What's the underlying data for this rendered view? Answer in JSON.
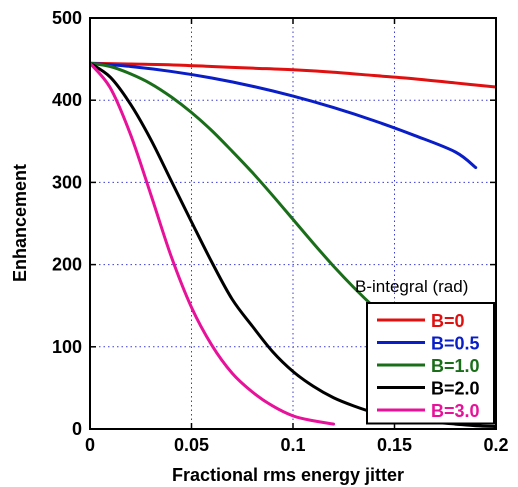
{
  "chart_data": {
    "type": "line",
    "xlabel": "Fractional rms energy jitter",
    "ylabel": "Enhancement",
    "xlim": [
      0,
      0.2
    ],
    "ylim": [
      0,
      500
    ],
    "xticks": [
      0,
      0.05,
      0.1,
      0.15,
      0.2
    ],
    "xtick_labels": [
      "0",
      "0.05",
      "0.1",
      "0.15",
      "0.2"
    ],
    "yticks": [
      0,
      100,
      200,
      300,
      400,
      500
    ],
    "ytick_labels": [
      "0",
      "100",
      "200",
      "300",
      "400",
      "500"
    ],
    "grid": true,
    "grid_style": "dotted",
    "legend_title": "B-integral (rad)",
    "legend_position": "bottom-right",
    "series": [
      {
        "name": "B=0",
        "color": "#e01010",
        "points": [
          [
            0,
            445
          ],
          [
            0.02,
            444
          ],
          [
            0.04,
            443
          ],
          [
            0.06,
            441
          ],
          [
            0.08,
            439
          ],
          [
            0.1,
            437
          ],
          [
            0.12,
            434
          ],
          [
            0.14,
            430
          ],
          [
            0.16,
            426
          ],
          [
            0.18,
            421
          ],
          [
            0.2,
            416
          ]
        ]
      },
      {
        "name": "B=0.5",
        "color": "#0a1ec8",
        "points": [
          [
            0,
            445
          ],
          [
            0.02,
            441
          ],
          [
            0.04,
            435
          ],
          [
            0.06,
            427
          ],
          [
            0.08,
            417
          ],
          [
            0.1,
            405
          ],
          [
            0.12,
            391
          ],
          [
            0.14,
            375
          ],
          [
            0.16,
            357
          ],
          [
            0.18,
            337
          ],
          [
            0.19,
            318
          ]
        ]
      },
      {
        "name": "B=1.0",
        "color": "#1a6e1a",
        "points": [
          [
            0,
            445
          ],
          [
            0.01,
            441
          ],
          [
            0.02,
            432
          ],
          [
            0.03,
            420
          ],
          [
            0.04,
            404
          ],
          [
            0.05,
            385
          ],
          [
            0.06,
            363
          ],
          [
            0.07,
            338
          ],
          [
            0.08,
            312
          ],
          [
            0.09,
            284
          ],
          [
            0.1,
            255
          ],
          [
            0.11,
            226
          ],
          [
            0.12,
            198
          ],
          [
            0.13,
            172
          ],
          [
            0.14,
            148
          ],
          [
            0.15,
            126
          ],
          [
            0.16,
            106
          ],
          [
            0.17,
            89
          ],
          [
            0.18,
            74
          ],
          [
            0.19,
            60
          ],
          [
            0.2,
            50
          ]
        ]
      },
      {
        "name": "B=2.0",
        "color": "#000000",
        "points": [
          [
            0,
            445
          ],
          [
            0.01,
            428
          ],
          [
            0.02,
            395
          ],
          [
            0.03,
            352
          ],
          [
            0.04,
            302
          ],
          [
            0.05,
            252
          ],
          [
            0.06,
            203
          ],
          [
            0.07,
            158
          ],
          [
            0.08,
            125
          ],
          [
            0.09,
            94
          ],
          [
            0.1,
            70
          ],
          [
            0.11,
            52
          ],
          [
            0.12,
            38
          ],
          [
            0.13,
            28
          ],
          [
            0.14,
            20
          ],
          [
            0.15,
            15
          ],
          [
            0.16,
            11
          ],
          [
            0.17,
            8
          ],
          [
            0.18,
            6
          ],
          [
            0.19,
            4
          ],
          [
            0.2,
            3
          ]
        ]
      },
      {
        "name": "B=3.0",
        "color": "#e8129a",
        "points": [
          [
            0,
            445
          ],
          [
            0.01,
            415
          ],
          [
            0.02,
            358
          ],
          [
            0.03,
            285
          ],
          [
            0.04,
            210
          ],
          [
            0.05,
            148
          ],
          [
            0.06,
            102
          ],
          [
            0.07,
            68
          ],
          [
            0.08,
            45
          ],
          [
            0.09,
            28
          ],
          [
            0.1,
            16
          ],
          [
            0.11,
            10
          ],
          [
            0.12,
            6
          ]
        ]
      }
    ]
  }
}
